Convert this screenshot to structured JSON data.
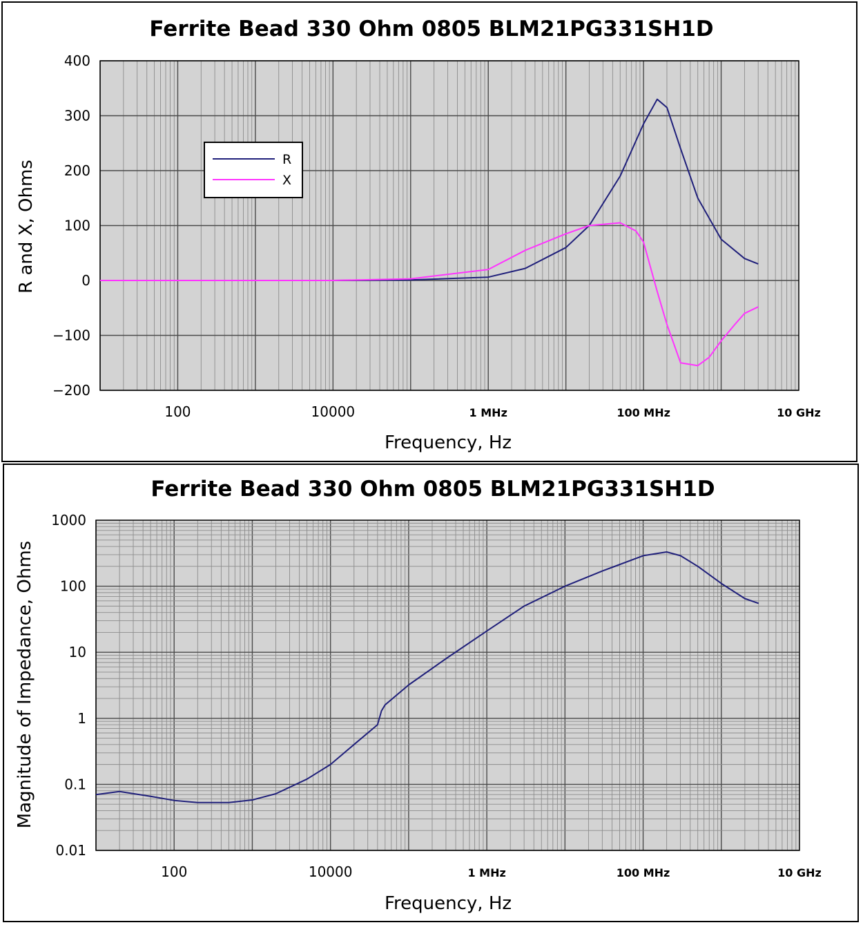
{
  "chart_data": [
    {
      "type": "line",
      "title": "Ferrite Bead 330 Ohm 0805 BLM21PG331SH1D",
      "xlabel": "Frequency, Hz",
      "ylabel": "R and X, Ohms",
      "x_scale": "log",
      "xlim": [
        10,
        10000000000
      ],
      "ylim": [
        -200,
        400
      ],
      "x_ticks": [
        {
          "value": 100,
          "label": "100"
        },
        {
          "value": 10000,
          "label": "10000"
        },
        {
          "value": 1000000,
          "label": "1 MHz"
        },
        {
          "value": 100000000,
          "label": "100 MHz"
        },
        {
          "value": 10000000000,
          "label": "10 GHz"
        }
      ],
      "y_ticks": [
        {
          "value": 400,
          "label": "400"
        },
        {
          "value": 300,
          "label": "300"
        },
        {
          "value": 200,
          "label": "200"
        },
        {
          "value": 100,
          "label": "100"
        },
        {
          "value": 0,
          "label": "0"
        },
        {
          "value": -100,
          "label": "−100"
        },
        {
          "value": -200,
          "label": "−200"
        }
      ],
      "grid": true,
      "legend_position": "upper-left",
      "series": [
        {
          "name": "R",
          "color": "#1f1f7a",
          "x": [
            10,
            1000,
            10000,
            100000,
            1000000,
            3000000,
            10000000,
            20000000,
            50000000,
            100000000,
            150000000,
            200000000,
            300000000,
            500000000,
            1000000000,
            2000000000,
            3000000000
          ],
          "y": [
            0,
            0,
            0,
            1,
            6,
            22,
            60,
            100,
            190,
            285,
            330,
            315,
            240,
            150,
            75,
            40,
            30
          ]
        },
        {
          "name": "X",
          "color": "#ff33ff",
          "x": [
            10,
            1000,
            10000,
            100000,
            1000000,
            3000000,
            10000000,
            20000000,
            50000000,
            80000000,
            100000000,
            150000000,
            200000000,
            300000000,
            500000000,
            700000000,
            1000000000,
            1500000000,
            2000000000,
            3000000000
          ],
          "y": [
            0,
            0,
            0,
            3,
            20,
            55,
            85,
            100,
            105,
            90,
            70,
            -20,
            -80,
            -150,
            -155,
            -140,
            -110,
            -80,
            -60,
            -48
          ]
        }
      ]
    },
    {
      "type": "line",
      "title": "Ferrite Bead 330 Ohm 0805 BLM21PG331SH1D",
      "xlabel": "Frequency, Hz",
      "ylabel": "Magnitude of Impedance, Ohms",
      "x_scale": "log",
      "y_scale": "log",
      "xlim": [
        10,
        10000000000
      ],
      "ylim": [
        0.01,
        1000
      ],
      "x_ticks": [
        {
          "value": 100,
          "label": "100"
        },
        {
          "value": 10000,
          "label": "10000"
        },
        {
          "value": 1000000,
          "label": "1 MHz"
        },
        {
          "value": 100000000,
          "label": "100 MHz"
        },
        {
          "value": 10000000000,
          "label": "10 GHz"
        }
      ],
      "y_ticks": [
        {
          "value": 1000,
          "label": "1000"
        },
        {
          "value": 100,
          "label": "100"
        },
        {
          "value": 10,
          "label": "10"
        },
        {
          "value": 1,
          "label": "1"
        },
        {
          "value": 0.1,
          "label": "0.1"
        },
        {
          "value": 0.01,
          "label": "0.01"
        }
      ],
      "grid": true,
      "series": [
        {
          "color": "#1f1f7a",
          "x": [
            10,
            20,
            50,
            100,
            200,
            500,
            1000,
            2000,
            5000,
            10000,
            20000,
            40000,
            45000,
            50000,
            100000,
            300000,
            1000000,
            3000000,
            10000000,
            30000000,
            100000000,
            200000000,
            300000000,
            500000000,
            1000000000,
            2000000000,
            3000000000
          ],
          "y": [
            0.07,
            0.078,
            0.066,
            0.057,
            0.053,
            0.053,
            0.058,
            0.072,
            0.12,
            0.2,
            0.4,
            0.8,
            1.3,
            1.6,
            3.2,
            8,
            21,
            50,
            100,
            170,
            290,
            330,
            290,
            200,
            110,
            65,
            55
          ]
        }
      ]
    }
  ]
}
